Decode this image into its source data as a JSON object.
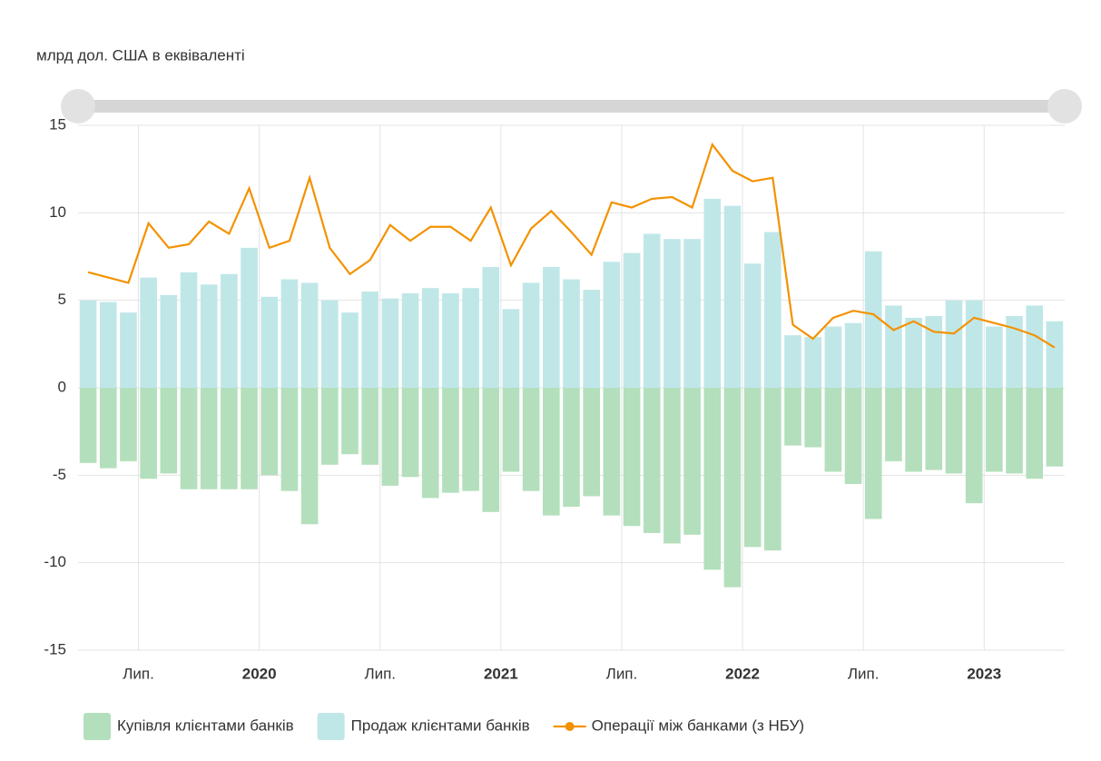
{
  "chart_data": {
    "type": "bar",
    "y_label": "млрд дол. США в еквіваленті",
    "categories": [
      null,
      null,
      null,
      "Лип.",
      null,
      null,
      null,
      null,
      null,
      "2020",
      null,
      null,
      null,
      null,
      null,
      "Лип.",
      null,
      null,
      null,
      null,
      null,
      "2021",
      null,
      null,
      null,
      null,
      null,
      "Лип.",
      null,
      null,
      null,
      null,
      null,
      "2022",
      null,
      null,
      null,
      null,
      null,
      "Лип.",
      null,
      null,
      null,
      null,
      null,
      "2023",
      null,
      null,
      null
    ],
    "series": [
      {
        "name": "Купівля клієнтами банків",
        "type": "bar",
        "color": "#b4dfbc",
        "values": [
          -4.3,
          -4.6,
          -4.2,
          -5.2,
          -4.9,
          -5.8,
          -5.8,
          -5.8,
          -5.8,
          -5.0,
          -5.9,
          -7.8,
          -4.4,
          -3.8,
          -4.4,
          -5.6,
          -5.1,
          -6.3,
          -6.0,
          -5.9,
          -7.1,
          -4.8,
          -5.9,
          -7.3,
          -6.8,
          -6.2,
          -7.3,
          -7.9,
          -8.3,
          -8.9,
          -8.4,
          -10.4,
          -11.4,
          -9.1,
          -9.3,
          -3.3,
          -3.4,
          -4.8,
          -5.5,
          -7.5,
          -4.2,
          -4.8,
          -4.7,
          -4.9,
          -6.6,
          -4.8,
          -4.9,
          -5.2,
          -4.5
        ]
      },
      {
        "name": "Продаж клієнтами банків",
        "type": "bar",
        "color": "#c0e7e8",
        "values": [
          5.0,
          4.9,
          4.3,
          6.3,
          5.3,
          6.6,
          5.9,
          6.5,
          8.0,
          5.2,
          6.2,
          6.0,
          5.0,
          4.3,
          5.5,
          5.1,
          5.4,
          5.7,
          5.4,
          5.7,
          6.9,
          4.5,
          6.0,
          6.9,
          6.2,
          5.6,
          7.2,
          7.7,
          8.8,
          8.5,
          8.5,
          10.8,
          10.4,
          7.1,
          8.9,
          3.0,
          2.9,
          3.5,
          3.7,
          7.8,
          4.7,
          4.0,
          4.1,
          5.0,
          5.0,
          3.5,
          4.1,
          4.7,
          3.8
        ]
      },
      {
        "name": "Операції між банками (з НБУ)",
        "type": "line",
        "color": "#f39200",
        "values": [
          6.6,
          6.3,
          6.0,
          9.4,
          8.0,
          8.2,
          9.5,
          8.8,
          11.4,
          8.0,
          8.4,
          12.0,
          8.0,
          6.5,
          7.3,
          9.3,
          8.4,
          9.2,
          9.2,
          8.4,
          10.3,
          7.0,
          9.1,
          10.1,
          8.9,
          7.6,
          10.6,
          10.3,
          10.8,
          10.9,
          10.3,
          13.9,
          12.4,
          11.8,
          12.0,
          3.6,
          2.8,
          4.0,
          4.4,
          4.2,
          3.3,
          3.8,
          3.2,
          3.1,
          4.0,
          3.7,
          3.4,
          3.0,
          2.3
        ]
      }
    ],
    "ylim": [
      -15,
      15
    ],
    "yticks": [
      -15,
      -10,
      -5,
      0,
      5,
      10,
      15
    ],
    "grid": true,
    "legend": "bottom"
  }
}
